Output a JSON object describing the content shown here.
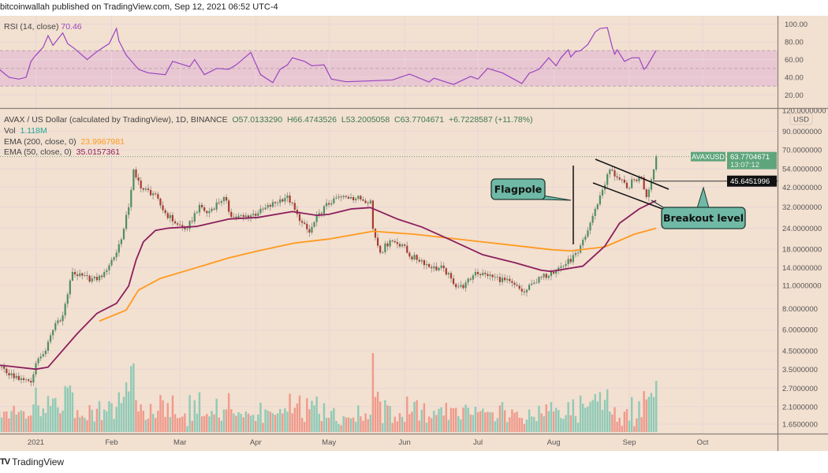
{
  "publisher_line": "bitcoinwallah published on TradingView.com, Sep 12, 2021 06:52 UTC-4",
  "footer_brand": "TradingView",
  "rsi_legend": {
    "label": "RSI (14, close)",
    "value": "70.46"
  },
  "main_legend": {
    "symbol": "AVAX / US Dollar (calculated by TradingView), 1D, BINANCE",
    "open": "O57.0133290",
    "high": "H66.4743526",
    "low": "L53.2005058",
    "close": "C63.7704671",
    "change": "+6.7228587 (+11.78%)",
    "vol_label": "Vol",
    "vol_value": "1.118M",
    "ema200_label": "EMA (200, close, 0)",
    "ema200_value": "23.9967981",
    "ema50_label": "EMA (50, close, 0)",
    "ema50_value": "35.0157361"
  },
  "price_tag": {
    "symbol": "AVAXUSD",
    "price": "63.7704671",
    "countdown": "13:07:12"
  },
  "breakout_tag": "45.6451996",
  "currency": "USD",
  "annotations": {
    "flagpole": "Flagpole",
    "breakout": "Breakout level"
  },
  "colors": {
    "background": "#f2e0d0",
    "rsi_band": "#e8c6d2",
    "rsi_line": "#9b45c0",
    "up": "#4f8f62",
    "down": "#a53c30",
    "vol_up": "#8fcab7",
    "vol_down": "#ef9a8c",
    "ema200": "#ff9a1f",
    "ema50": "#8c1f5e",
    "callout": "#6fb9a6",
    "price_tag": "#5fa57c"
  },
  "chart_data": {
    "type": "candlestick",
    "scale": "log",
    "x_ticks": [
      "2021",
      "Feb",
      "Mar",
      "Apr",
      "May",
      "Jun",
      "Jul",
      "Aug",
      "Sep",
      "Oct"
    ],
    "y_ticks": [
      "120.0000000",
      "90.0000000",
      "70.0000000",
      "54.0000000",
      "42.0000000",
      "32.0000000",
      "24.0000000",
      "18.0000000",
      "14.0000000",
      "11.0000000",
      "8.0000000",
      "6.0000000",
      "4.5000000",
      "3.5000000",
      "2.7000000",
      "2.1000000",
      "1.6500000"
    ],
    "rsi_ticks": [
      "100.00",
      "80.00",
      "60.00",
      "40.00",
      "20.00"
    ],
    "rsi_band": [
      30,
      70
    ],
    "close": [
      [
        "2020-12-17",
        3.63
      ],
      [
        "2020-12-25",
        3.02
      ],
      [
        "2020-12-30",
        2.92
      ],
      [
        "2021-01-01",
        3.8
      ],
      [
        "2021-01-05",
        4.5
      ],
      [
        "2021-01-09",
        6.56
      ],
      [
        "2021-01-12",
        7.3
      ],
      [
        "2021-01-16",
        13.2
      ],
      [
        "2021-01-18",
        12.5
      ],
      [
        "2021-01-26",
        11.8
      ],
      [
        "2021-01-29",
        13.2
      ],
      [
        "2021-02-03",
        17.2
      ],
      [
        "2021-02-06",
        23.8
      ],
      [
        "2021-02-08",
        32
      ],
      [
        "2021-02-10",
        53.5
      ],
      [
        "2021-02-11",
        48
      ],
      [
        "2021-02-14",
        40.6
      ],
      [
        "2021-02-18",
        38.6
      ],
      [
        "2021-02-23",
        29.5
      ],
      [
        "2021-02-28",
        25.2
      ],
      [
        "2021-03-04",
        23.8
      ],
      [
        "2021-03-09",
        33
      ],
      [
        "2021-03-12",
        29.5
      ],
      [
        "2021-03-19",
        36.7
      ],
      [
        "2021-03-22",
        28
      ],
      [
        "2021-03-27",
        28
      ],
      [
        "2021-04-02",
        29.5
      ],
      [
        "2021-04-14",
        37.5
      ],
      [
        "2021-04-19",
        26.5
      ],
      [
        "2021-04-23",
        22.6
      ],
      [
        "2021-04-27",
        29.5
      ],
      [
        "2021-05-03",
        36
      ],
      [
        "2021-05-10",
        36.7
      ],
      [
        "2021-05-18",
        35
      ],
      [
        "2021-05-19",
        23.8
      ],
      [
        "2021-05-22",
        17.2
      ],
      [
        "2021-05-26",
        20.3
      ],
      [
        "2021-05-31",
        19.2
      ],
      [
        "2021-06-03",
        16.3
      ],
      [
        "2021-06-08",
        15.5
      ],
      [
        "2021-06-12",
        13.9
      ],
      [
        "2021-06-17",
        13.9
      ],
      [
        "2021-06-21",
        11.2
      ],
      [
        "2021-06-25",
        10.6
      ],
      [
        "2021-06-30",
        13.2
      ],
      [
        "2021-07-05",
        12.5
      ],
      [
        "2021-07-12",
        11.8
      ],
      [
        "2021-07-20",
        10
      ],
      [
        "2021-07-24",
        11.4
      ],
      [
        "2021-07-31",
        13.2
      ],
      [
        "2021-08-06",
        14.7
      ],
      [
        "2021-08-11",
        17.2
      ],
      [
        "2021-08-14",
        21.4
      ],
      [
        "2021-08-18",
        31.2
      ],
      [
        "2021-08-21",
        40.6
      ],
      [
        "2021-08-24",
        53.5
      ],
      [
        "2021-08-27",
        48
      ],
      [
        "2021-08-31",
        41.5
      ],
      [
        "2021-09-03",
        46.5
      ],
      [
        "2021-09-06",
        48
      ],
      [
        "2021-09-08",
        36.7
      ],
      [
        "2021-09-09",
        40.6
      ],
      [
        "2021-09-11",
        53.5
      ],
      [
        "2021-09-12",
        63.77
      ]
    ],
    "ema50": [
      [
        "2020-12-17",
        3.7
      ],
      [
        "2021-01-01",
        3.5
      ],
      [
        "2021-01-06",
        3.6
      ],
      [
        "2021-01-18",
        5.7
      ],
      [
        "2021-01-26",
        7.5
      ],
      [
        "2021-02-03",
        8.6
      ],
      [
        "2021-02-08",
        10.9
      ],
      [
        "2021-02-11",
        15.5
      ],
      [
        "2021-02-14",
        19.9
      ],
      [
        "2021-02-19",
        23.3
      ],
      [
        "2021-02-24",
        24
      ],
      [
        "2021-03-08",
        24.6
      ],
      [
        "2021-03-21",
        27.2
      ],
      [
        "2021-04-02",
        27.8
      ],
      [
        "2021-04-16",
        30.1
      ],
      [
        "2021-04-26",
        28.6
      ],
      [
        "2021-05-01",
        29
      ],
      [
        "2021-05-10",
        31.2
      ],
      [
        "2021-05-18",
        31.8
      ],
      [
        "2021-05-29",
        27.2
      ],
      [
        "2021-06-08",
        24.4
      ],
      [
        "2021-06-19",
        20.7
      ],
      [
        "2021-07-03",
        16.7
      ],
      [
        "2021-07-16",
        15
      ],
      [
        "2021-07-27",
        13.5
      ],
      [
        "2021-07-31",
        13.3
      ],
      [
        "2021-08-13",
        14.3
      ],
      [
        "2021-08-22",
        18.8
      ],
      [
        "2021-08-28",
        25.7
      ],
      [
        "2021-09-05",
        31.2
      ],
      [
        "2021-09-12",
        35.02
      ]
    ],
    "ema200": [
      [
        "2021-01-27",
        6.75
      ],
      [
        "2021-02-07",
        7.85
      ],
      [
        "2021-02-12",
        10.3
      ],
      [
        "2021-02-21",
        12.1
      ],
      [
        "2021-03-07",
        13.9
      ],
      [
        "2021-03-21",
        16
      ],
      [
        "2021-04-02",
        17.6
      ],
      [
        "2021-04-17",
        19.6
      ],
      [
        "2021-05-01",
        20.7
      ],
      [
        "2021-05-19",
        23
      ],
      [
        "2021-06-05",
        22.1
      ],
      [
        "2021-07-03",
        19.9
      ],
      [
        "2021-07-31",
        17.9
      ],
      [
        "2021-08-08",
        17.6
      ],
      [
        "2021-08-22",
        18.6
      ],
      [
        "2021-09-03",
        22.1
      ],
      [
        "2021-09-12",
        24.0
      ]
    ],
    "rsi": [
      [
        "2020-12-17",
        49
      ],
      [
        "2020-12-21",
        40
      ],
      [
        "2020-12-25",
        38
      ],
      [
        "2020-12-28",
        40
      ],
      [
        "2020-12-30",
        58
      ],
      [
        "2021-01-01",
        65
      ],
      [
        "2021-01-04",
        74
      ],
      [
        "2021-01-06",
        87
      ],
      [
        "2021-01-08",
        76
      ],
      [
        "2021-01-12",
        90
      ],
      [
        "2021-01-14",
        78
      ],
      [
        "2021-01-17",
        72
      ],
      [
        "2021-01-22",
        60
      ],
      [
        "2021-01-26",
        69
      ],
      [
        "2021-01-31",
        78
      ],
      [
        "2021-02-03",
        95
      ],
      [
        "2021-02-04",
        81
      ],
      [
        "2021-02-07",
        65
      ],
      [
        "2021-02-12",
        49
      ],
      [
        "2021-02-16",
        45
      ],
      [
        "2021-02-23",
        43
      ],
      [
        "2021-02-26",
        58
      ],
      [
        "2021-03-05",
        52
      ],
      [
        "2021-03-07",
        60
      ],
      [
        "2021-03-11",
        43
      ],
      [
        "2021-03-16",
        50
      ],
      [
        "2021-03-21",
        49
      ],
      [
        "2021-03-24",
        54
      ],
      [
        "2021-03-30",
        68
      ],
      [
        "2021-04-03",
        43
      ],
      [
        "2021-04-08",
        34
      ],
      [
        "2021-04-11",
        49
      ],
      [
        "2021-04-14",
        54
      ],
      [
        "2021-04-16",
        62
      ],
      [
        "2021-04-21",
        58
      ],
      [
        "2021-04-24",
        53
      ],
      [
        "2021-04-29",
        54
      ],
      [
        "2021-05-02",
        38
      ],
      [
        "2021-05-08",
        35
      ],
      [
        "2021-05-18",
        36
      ],
      [
        "2021-05-27",
        37
      ],
      [
        "2021-06-03",
        43.6
      ],
      [
        "2021-06-11",
        34.7
      ],
      [
        "2021-06-13",
        39
      ],
      [
        "2021-06-21",
        32
      ],
      [
        "2021-06-28",
        41
      ],
      [
        "2021-07-01",
        38
      ],
      [
        "2021-07-05",
        50
      ],
      [
        "2021-07-11",
        45
      ],
      [
        "2021-07-15",
        39
      ],
      [
        "2021-07-19",
        33
      ],
      [
        "2021-07-22",
        44.5
      ],
      [
        "2021-07-26",
        49
      ],
      [
        "2021-07-30",
        62
      ],
      [
        "2021-08-02",
        53
      ],
      [
        "2021-08-04",
        62
      ],
      [
        "2021-08-07",
        71
      ],
      [
        "2021-08-08",
        63
      ],
      [
        "2021-08-10",
        69
      ],
      [
        "2021-08-12",
        70
      ],
      [
        "2021-08-15",
        77
      ],
      [
        "2021-08-18",
        91
      ],
      [
        "2021-08-20",
        95
      ],
      [
        "2021-08-23",
        96
      ],
      [
        "2021-08-25",
        74
      ],
      [
        "2021-08-26",
        66
      ],
      [
        "2021-08-27",
        71
      ],
      [
        "2021-08-30",
        58
      ],
      [
        "2021-09-02",
        62
      ],
      [
        "2021-09-05",
        62
      ],
      [
        "2021-09-07",
        49
      ],
      [
        "2021-09-08",
        51.5
      ],
      [
        "2021-09-12",
        70.46
      ]
    ],
    "breakout_level": 45.6451996,
    "last_price": 63.7704671
  }
}
